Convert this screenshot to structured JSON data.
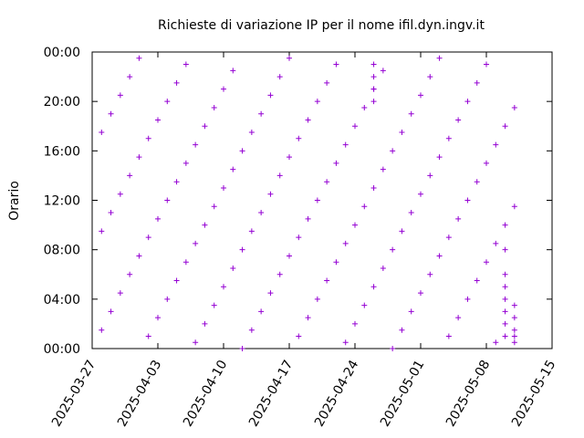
{
  "chart_data": {
    "type": "scatter",
    "title": "Richieste di variazione IP per il nome ifil.dyn.ingv.it",
    "y_label": "Orario",
    "color": "#9400d3",
    "xlim": [
      "2025-03-27",
      "2025-05-15"
    ],
    "xticks": [
      "2025-03-27",
      "2025-04-03",
      "2025-04-10",
      "2025-04-17",
      "2025-04-24",
      "2025-05-01",
      "2025-05-08",
      "2025-05-15"
    ],
    "ylim": [
      0,
      24
    ],
    "yticks": [
      {
        "value": 0,
        "label": "00:00"
      },
      {
        "value": 4,
        "label": "04:00"
      },
      {
        "value": 8,
        "label": "08:00"
      },
      {
        "value": 12,
        "label": "12:00"
      },
      {
        "value": 16,
        "label": "16:00"
      },
      {
        "value": 20,
        "label": "20:00"
      },
      {
        "value": 24,
        "label": "00:00"
      }
    ],
    "x": [
      "2025-03-28",
      "2025-03-28",
      "2025-03-28",
      "2025-03-29",
      "2025-03-29",
      "2025-03-29",
      "2025-03-30",
      "2025-03-30",
      "2025-03-30",
      "2025-03-31",
      "2025-03-31",
      "2025-03-31",
      "2025-04-01",
      "2025-04-01",
      "2025-04-01",
      "2025-04-02",
      "2025-04-02",
      "2025-04-02",
      "2025-04-03",
      "2025-04-03",
      "2025-04-03",
      "2025-04-04",
      "2025-04-04",
      "2025-04-04",
      "2025-04-05",
      "2025-04-05",
      "2025-04-05",
      "2025-04-06",
      "2025-04-06",
      "2025-04-06",
      "2025-04-07",
      "2025-04-07",
      "2025-04-07",
      "2025-04-08",
      "2025-04-08",
      "2025-04-08",
      "2025-04-09",
      "2025-04-09",
      "2025-04-09",
      "2025-04-10",
      "2025-04-10",
      "2025-04-10",
      "2025-04-11",
      "2025-04-11",
      "2025-04-11",
      "2025-04-12",
      "2025-04-12",
      "2025-04-12",
      "2025-04-13",
      "2025-04-13",
      "2025-04-13",
      "2025-04-14",
      "2025-04-14",
      "2025-04-14",
      "2025-04-15",
      "2025-04-15",
      "2025-04-15",
      "2025-04-16",
      "2025-04-16",
      "2025-04-16",
      "2025-04-17",
      "2025-04-17",
      "2025-04-17",
      "2025-04-18",
      "2025-04-18",
      "2025-04-18",
      "2025-04-19",
      "2025-04-19",
      "2025-04-19",
      "2025-04-20",
      "2025-04-20",
      "2025-04-20",
      "2025-04-21",
      "2025-04-21",
      "2025-04-21",
      "2025-04-22",
      "2025-04-22",
      "2025-04-22",
      "2025-04-23",
      "2025-04-23",
      "2025-04-23",
      "2025-04-24",
      "2025-04-24",
      "2025-04-24",
      "2025-04-25",
      "2025-04-25",
      "2025-04-25",
      "2025-04-26",
      "2025-04-26",
      "2025-04-26",
      "2025-04-27",
      "2025-04-27",
      "2025-04-27",
      "2025-04-28",
      "2025-04-28",
      "2025-04-28",
      "2025-04-29",
      "2025-04-29",
      "2025-04-29",
      "2025-04-30",
      "2025-04-30",
      "2025-04-30",
      "2025-05-01",
      "2025-05-01",
      "2025-05-01",
      "2025-05-02",
      "2025-05-02",
      "2025-05-02",
      "2025-05-03",
      "2025-05-03",
      "2025-05-03",
      "2025-05-04",
      "2025-05-04",
      "2025-05-04",
      "2025-05-05",
      "2025-05-05",
      "2025-05-05",
      "2025-05-06",
      "2025-05-06",
      "2025-05-06",
      "2025-05-07",
      "2025-05-07",
      "2025-05-07",
      "2025-05-08",
      "2025-05-08",
      "2025-05-08",
      "2025-05-09",
      "2025-05-09",
      "2025-05-09",
      "2025-05-10",
      "2025-05-10",
      "2025-05-10",
      "2025-05-11",
      "2025-05-11",
      "2025-05-11",
      "2025-05-10",
      "2025-05-10",
      "2025-05-10",
      "2025-05-10",
      "2025-05-10",
      "2025-05-10",
      "2025-05-11",
      "2025-05-11",
      "2025-05-11",
      "2025-05-11",
      "2025-04-26",
      "2025-04-26",
      "2025-04-26",
      "2025-04-26"
    ],
    "y": [
      1.5,
      9.5,
      17.5,
      3,
      11,
      19,
      4.5,
      12.5,
      20.5,
      6,
      14,
      22,
      7.5,
      15.5,
      23.5,
      1,
      9,
      17,
      2.5,
      10.5,
      18.5,
      4,
      12,
      20,
      5.5,
      13.5,
      21.5,
      7,
      15,
      23,
      0.5,
      8.5,
      16.5,
      2,
      10,
      18,
      3.5,
      11.5,
      19.5,
      5,
      13,
      21,
      6.5,
      14.5,
      22.5,
      0,
      8,
      16,
      1.5,
      9.5,
      17.5,
      3,
      11,
      19,
      4.5,
      12.5,
      20.5,
      6,
      14,
      22,
      7.5,
      15.5,
      23.5,
      1,
      9,
      17,
      2.5,
      10.5,
      18.5,
      4,
      12,
      20,
      5.5,
      13.5,
      21.5,
      7,
      15,
      23,
      0.5,
      8.5,
      16.5,
      2,
      10,
      18,
      3.5,
      11.5,
      19.5,
      5,
      13,
      21,
      6.5,
      14.5,
      22.5,
      0,
      8,
      16,
      1.5,
      9.5,
      17.5,
      3,
      11,
      19,
      4.5,
      12.5,
      20.5,
      6,
      14,
      22,
      7.5,
      15.5,
      23.5,
      1,
      9,
      17,
      2.5,
      10.5,
      18.5,
      4,
      12,
      20,
      5.5,
      13.5,
      21.5,
      7,
      15,
      23,
      0.5,
      8.5,
      16.5,
      2,
      10,
      18,
      3.5,
      11.5,
      19.5,
      3,
      4,
      5,
      6,
      8,
      1,
      0.5,
      1,
      1.5,
      2.5,
      20,
      21,
      22,
      23
    ]
  }
}
